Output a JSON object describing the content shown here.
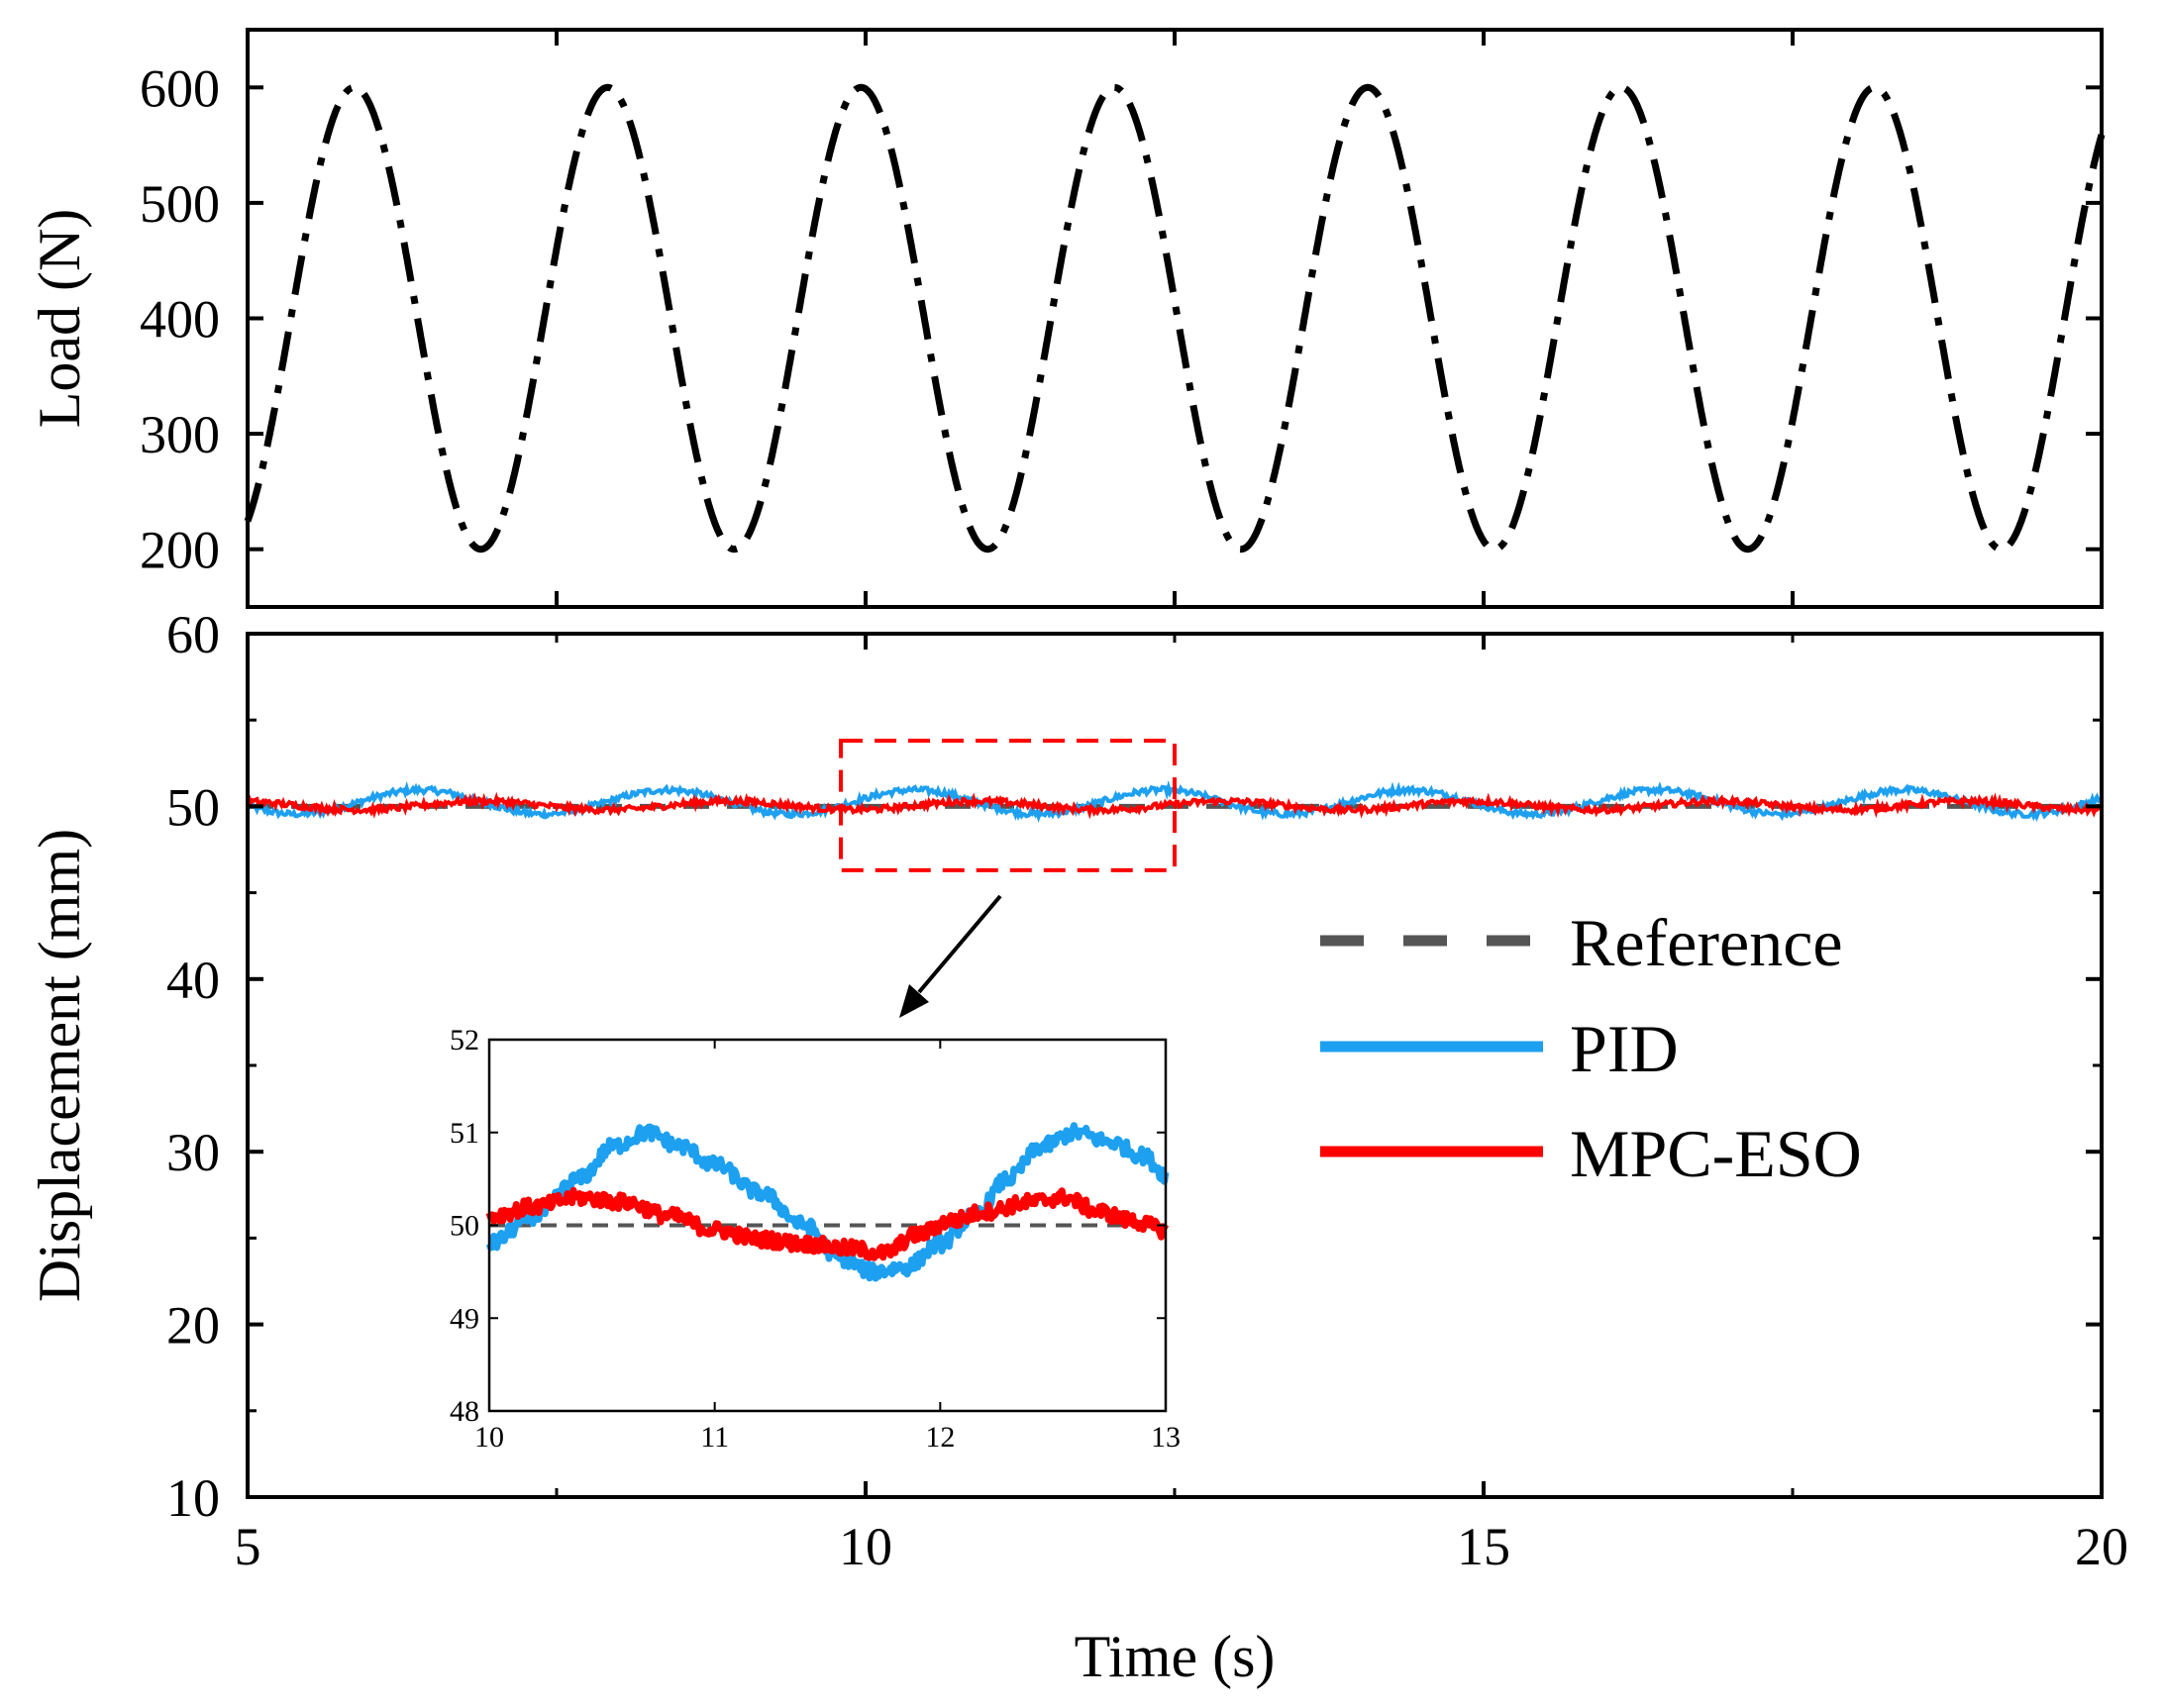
{
  "chart_data": [
    {
      "panel": "top",
      "type": "line",
      "ylabel": "Load (N)",
      "xlim": [
        5,
        20
      ],
      "ylim": [
        150,
        650
      ],
      "yticks": [
        200,
        300,
        400,
        500,
        600
      ],
      "xticks": [
        5,
        7.5,
        10,
        12.5,
        15,
        17.5,
        20
      ],
      "series": [
        {
          "name": "Load",
          "color": "#000000",
          "style": "dash-dot",
          "formula": "400 + 200*sin(2*pi*(t-5.35)/2.05)"
        }
      ]
    },
    {
      "panel": "bottom",
      "type": "line",
      "ylabel": "Displacement (mm)",
      "xlabel": "Time (s)",
      "xlim": [
        5,
        20
      ],
      "ylim": [
        10,
        60
      ],
      "yticks": [
        10,
        20,
        30,
        40,
        50,
        60
      ],
      "xticks": [
        5,
        10,
        15,
        20
      ],
      "xticks_minor": [
        7.5,
        12.5,
        17.5
      ],
      "zoom_box": {
        "x": [
          9.8,
          12.5
        ],
        "y": [
          46.3,
          53.8
        ]
      },
      "legend": {
        "position": "right",
        "entries": [
          {
            "label": "Reference",
            "color": "#555555",
            "style": "dashed"
          },
          {
            "label": "PID",
            "color": "#1ea0f0",
            "style": "solid"
          },
          {
            "label": "MPC-ESO",
            "color": "#ff0000",
            "style": "solid"
          }
        ]
      },
      "series": [
        {
          "name": "Reference",
          "color": "#555555",
          "formula": "50"
        },
        {
          "name": "PID",
          "color": "#1ea0f0",
          "formula": "50.25 + 0.7*sin(2*pi*(t-9.9)/2.0) + noise"
        },
        {
          "name": "MPC-ESO",
          "color": "#ff0000",
          "formula": "50.05 + 0.25*sin(2*pi*(t-10.4)/2.0) + noise"
        }
      ]
    },
    {
      "panel": "inset",
      "type": "line",
      "xlim": [
        10,
        13
      ],
      "ylim": [
        48,
        52
      ],
      "xticks": [
        10,
        11,
        12,
        13
      ],
      "yticks": [
        48,
        49,
        50,
        51,
        52
      ],
      "series": [
        {
          "name": "Reference",
          "color": "#555555",
          "values_at": {
            "x": [
              10,
              13
            ],
            "y": [
              50,
              50
            ]
          }
        },
        {
          "name": "PID",
          "color": "#1ea0f0",
          "x": [
            10.0,
            10.2,
            10.4,
            10.55,
            10.7,
            10.85,
            11.0,
            11.2,
            11.4,
            11.55,
            11.7,
            11.85,
            12.0,
            12.15,
            12.3,
            12.45,
            12.6,
            12.75,
            12.9,
            13.0
          ],
          "y": [
            49.8,
            50.1,
            50.5,
            50.85,
            51.0,
            50.85,
            50.65,
            50.35,
            50.0,
            49.65,
            49.5,
            49.55,
            49.8,
            50.1,
            50.5,
            50.85,
            51.0,
            50.9,
            50.75,
            50.55
          ]
        },
        {
          "name": "MPC-ESO",
          "color": "#ff0000",
          "x": [
            10.0,
            10.2,
            10.4,
            10.6,
            10.8,
            11.0,
            11.2,
            11.4,
            11.6,
            11.75,
            11.9,
            12.05,
            12.2,
            12.4,
            12.55,
            12.7,
            12.85,
            13.0
          ],
          "y": [
            50.1,
            50.2,
            50.3,
            50.25,
            50.1,
            49.95,
            49.85,
            49.8,
            49.75,
            49.7,
            49.9,
            50.05,
            50.15,
            50.25,
            50.3,
            50.15,
            50.05,
            49.95
          ]
        }
      ]
    }
  ]
}
